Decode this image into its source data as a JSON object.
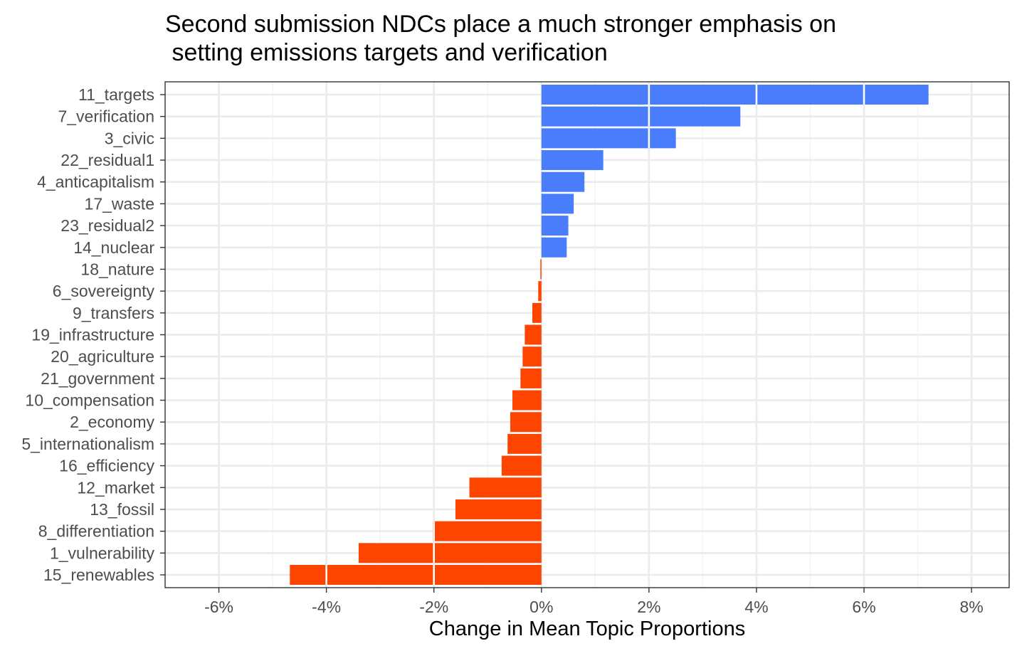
{
  "chart_data": {
    "type": "bar",
    "orientation": "horizontal",
    "title": "Second submission NDCs place a much stronger emphasis on\n setting emissions targets and verification",
    "xlabel": "Change in Mean Topic Proportions",
    "ylabel": "",
    "xlim": [
      -7,
      8.7
    ],
    "xticks": [
      -6,
      -4,
      -2,
      0,
      2,
      4,
      6,
      8
    ],
    "xtick_labels": [
      "-6%",
      "-4%",
      "-2%",
      "0%",
      "2%",
      "4%",
      "6%",
      "8%"
    ],
    "grid": true,
    "legend": "none",
    "colors": {
      "positive": "#4a7dfc",
      "negative": "#fe4500"
    },
    "categories": [
      "11_targets",
      "7_verification",
      "3_civic",
      "22_residual1",
      "4_anticapitalism",
      "17_waste",
      "23_residual2",
      "14_nuclear",
      "18_nature",
      "6_sovereignty",
      "9_transfers",
      "19_infrastructure",
      "20_agriculture",
      "21_government",
      "10_compensation",
      "2_economy",
      "5_internationalism",
      "16_efficiency",
      "12_market",
      "13_fossil",
      "8_differentiation",
      "1_vulnerability",
      "15_renewables"
    ],
    "values": [
      7.2,
      3.7,
      2.5,
      1.15,
      0.8,
      0.6,
      0.5,
      0.47,
      -0.02,
      -0.06,
      -0.17,
      -0.31,
      -0.35,
      -0.39,
      -0.54,
      -0.58,
      -0.63,
      -0.74,
      -1.34,
      -1.6,
      -2.02,
      -3.4,
      -4.68
    ]
  }
}
